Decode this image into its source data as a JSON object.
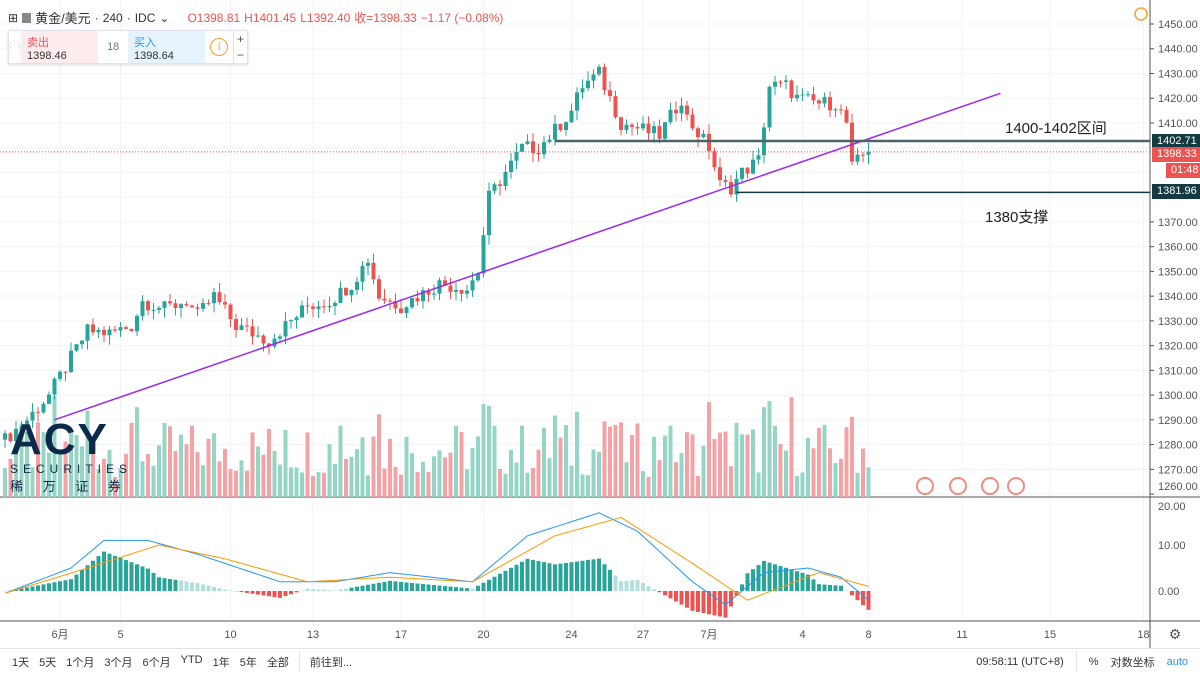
{
  "header": {
    "symbol": "黄金/美元",
    "interval": "240",
    "source": "IDC",
    "open": "O1398.81",
    "high": "H1401.45",
    "low": "L1392.40",
    "close": "收=1398.33",
    "change": "−1.17 (−0.08%)"
  },
  "trade": {
    "sell_label": "卖出",
    "sell_price": "1398.46",
    "spread": "18",
    "buy_label": "买入",
    "buy_price": "1398.64",
    "info": "i",
    "plus": "+",
    "minus": "−"
  },
  "price_axis": {
    "ticks": [
      "1450.00",
      "1440.00",
      "1430.00",
      "1420.00",
      "1410.00",
      "1370.00",
      "1360.00",
      "1350.00",
      "1340.00",
      "1330.00",
      "1320.00",
      "1310.00",
      "1300.00",
      "1290.00",
      "1280.00",
      "1270.00",
      "1260.00"
    ],
    "min": 1260,
    "max": 1450
  },
  "price_labels": {
    "resistance": "1402.71",
    "last": "1398.33",
    "countdown": "01:48",
    "support": "1381.96"
  },
  "annotations": {
    "resistance_text": "1400-1402区间",
    "support_text": "1380支撑"
  },
  "macd_axis": {
    "ticks": [
      "20.00",
      "10.00",
      "0.00"
    ]
  },
  "time_axis": [
    {
      "label": "6月",
      "i": 10
    },
    {
      "label": "5",
      "i": 21
    },
    {
      "label": "10",
      "i": 41
    },
    {
      "label": "13",
      "i": 56
    },
    {
      "label": "17",
      "i": 72
    },
    {
      "label": "20",
      "i": 87
    },
    {
      "label": "24",
      "i": 103
    },
    {
      "label": "27",
      "i": 116
    },
    {
      "label": "7月",
      "i": 128
    },
    {
      "label": "4",
      "i": 145
    },
    {
      "label": "8",
      "i": 157
    },
    {
      "label": "11",
      "i": 174
    },
    {
      "label": "15",
      "i": 190
    },
    {
      "label": "18",
      "i": 207
    }
  ],
  "logo": {
    "brand": "ACY",
    "sub": "SECURITIES",
    "cn": "稀 万 证 券"
  },
  "chart_data": {
    "type": "candlestick",
    "count": 158,
    "anchors": [
      [
        0,
        1282
      ],
      [
        4,
        1290
      ],
      [
        8,
        1300
      ],
      [
        12,
        1315
      ],
      [
        15,
        1326
      ],
      [
        19,
        1325
      ],
      [
        23,
        1328
      ],
      [
        25,
        1338
      ],
      [
        29,
        1335
      ],
      [
        33,
        1338
      ],
      [
        35,
        1332
      ],
      [
        38,
        1340
      ],
      [
        42,
        1328
      ],
      [
        45,
        1325
      ],
      [
        48,
        1322
      ],
      [
        52,
        1330
      ],
      [
        55,
        1336
      ],
      [
        59,
        1338
      ],
      [
        63,
        1345
      ],
      [
        66,
        1355
      ],
      [
        68,
        1340
      ],
      [
        72,
        1336
      ],
      [
        75,
        1340
      ],
      [
        79,
        1345
      ],
      [
        84,
        1343
      ],
      [
        86,
        1350
      ],
      [
        88,
        1380
      ],
      [
        91,
        1390
      ],
      [
        94,
        1400
      ],
      [
        97,
        1400
      ],
      [
        100,
        1407
      ],
      [
        103,
        1415
      ],
      [
        105,
        1425
      ],
      [
        108,
        1430
      ],
      [
        110,
        1420
      ],
      [
        112,
        1410
      ],
      [
        115,
        1408
      ],
      [
        119,
        1405
      ],
      [
        123,
        1420
      ],
      [
        124,
        1412
      ],
      [
        128,
        1400
      ],
      [
        130,
        1385
      ],
      [
        132,
        1384
      ],
      [
        134,
        1390
      ],
      [
        137,
        1395
      ],
      [
        139,
        1425
      ],
      [
        142,
        1425
      ],
      [
        144,
        1420
      ],
      [
        148,
        1418
      ],
      [
        151,
        1418
      ],
      [
        153,
        1410
      ],
      [
        154,
        1392
      ],
      [
        156,
        1397
      ],
      [
        157,
        1398
      ]
    ],
    "trendline": [
      [
        9,
        1290
      ],
      [
        181,
        1422
      ]
    ],
    "resistance": 1402.71,
    "support": 1381.96,
    "last": 1398.33,
    "macd": [
      [
        0,
        -0.5
      ],
      [
        12,
        5
      ],
      [
        18,
        11
      ],
      [
        26,
        11
      ],
      [
        35,
        8
      ],
      [
        50,
        2
      ],
      [
        60,
        2
      ],
      [
        70,
        4
      ],
      [
        85,
        2
      ],
      [
        95,
        12
      ],
      [
        108,
        17
      ],
      [
        115,
        13
      ],
      [
        125,
        2
      ],
      [
        131,
        -3
      ],
      [
        138,
        4
      ],
      [
        146,
        5
      ],
      [
        152,
        3
      ],
      [
        157,
        -2
      ]
    ],
    "signal": [
      [
        0,
        -0.5
      ],
      [
        15,
        5
      ],
      [
        28,
        10
      ],
      [
        40,
        7
      ],
      [
        55,
        2
      ],
      [
        70,
        3
      ],
      [
        85,
        2
      ],
      [
        100,
        12
      ],
      [
        112,
        16
      ],
      [
        125,
        6
      ],
      [
        135,
        -2
      ],
      [
        148,
        4
      ],
      [
        157,
        1
      ]
    ]
  },
  "bottom": {
    "ranges": [
      "1天",
      "5天",
      "1个月",
      "3个月",
      "6个月",
      "YTD",
      "1年",
      "5年",
      "全部"
    ],
    "goto": "前往到...",
    "time": "09:58:11 (UTC+8)",
    "percent": "%",
    "log": "对数坐标",
    "auto": "auto"
  }
}
